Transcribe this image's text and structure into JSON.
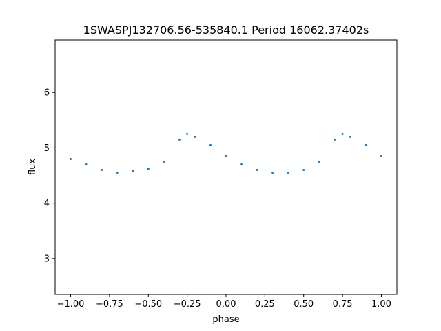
{
  "chart_data": {
    "type": "scatter",
    "title": "1SWASPJ132706.56-535840.1 Period 16062.37402s",
    "xlabel": "phase",
    "ylabel": "flux",
    "xlim": [
      -1.1,
      1.1
    ],
    "ylim": [
      2.35,
      6.95
    ],
    "grid": false,
    "legend": "none",
    "point_color": "#1f77b4",
    "x_ticks": [
      {
        "value": -1.0,
        "label": "−1.00"
      },
      {
        "value": -0.75,
        "label": "−0.75"
      },
      {
        "value": -0.5,
        "label": "−0.50"
      },
      {
        "value": -0.25,
        "label": "−0.25"
      },
      {
        "value": 0.0,
        "label": "0.00"
      },
      {
        "value": 0.25,
        "label": "0.25"
      },
      {
        "value": 0.5,
        "label": "0.50"
      },
      {
        "value": 0.75,
        "label": "0.75"
      },
      {
        "value": 1.0,
        "label": "1.00"
      }
    ],
    "y_ticks": [
      {
        "value": 3,
        "label": "3"
      },
      {
        "value": 4,
        "label": "4"
      },
      {
        "value": 5,
        "label": "5"
      },
      {
        "value": 6,
        "label": "6"
      }
    ],
    "series": [
      {
        "x": [
          -1.0,
          -0.9,
          -0.8,
          -0.7,
          -0.6,
          -0.5,
          -0.4,
          -0.3,
          -0.25,
          -0.2,
          -0.1,
          0.0,
          0.1,
          0.2,
          0.3,
          0.4,
          0.5,
          0.6,
          0.7,
          0.75,
          0.8,
          0.9,
          1.0
        ],
        "y": [
          4.8,
          4.7,
          4.6,
          4.55,
          4.58,
          4.62,
          4.75,
          5.15,
          5.25,
          5.2,
          5.05,
          4.85,
          4.7,
          4.6,
          4.55,
          4.55,
          4.6,
          4.75,
          5.15,
          5.25,
          5.2,
          5.05,
          4.85
        ]
      }
    ]
  }
}
